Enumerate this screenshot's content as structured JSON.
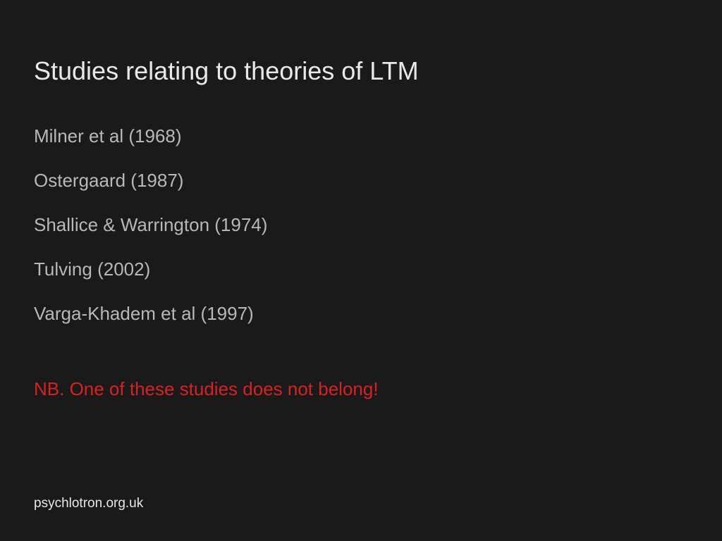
{
  "colors": {
    "background": "#1a1a1a",
    "title_text": "#e8e8e8",
    "body_text": "#b8b8b8",
    "warning_text": "#d82222",
    "footer_text": "#e8e8e8"
  },
  "typography": {
    "title_fontsize": 36,
    "body_fontsize": 26,
    "footer_fontsize": 19,
    "font_family": "Arial"
  },
  "title": "Studies relating to theories of LTM",
  "studies": [
    "Milner et al (1968)",
    "Ostergaard (1987)",
    "Shallice & Warrington (1974)",
    "Tulving (2002)",
    "Varga-Khadem et al (1997)"
  ],
  "nb_warning": "NB. One of these studies does not belong!",
  "footer": "psychlotron.org.uk"
}
